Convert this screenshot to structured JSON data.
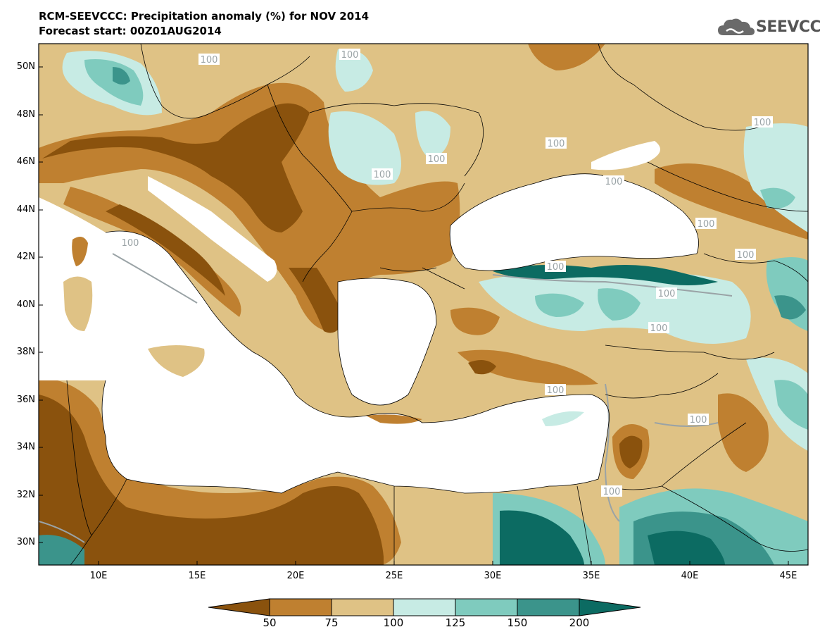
{
  "title_line1": "RCM-SEEVCCC: Precipitation anomaly (%) for NOV 2014",
  "title_line2": "Forecast start: 00Z01AUG2014",
  "logo_text": "SEEVCCC",
  "lat_labels": [
    "50N",
    "48N",
    "46N",
    "44N",
    "42N",
    "40N",
    "38N",
    "36N",
    "34N",
    "32N",
    "30N"
  ],
  "lon_labels": [
    "10E",
    "15E",
    "20E",
    "25E",
    "30E",
    "35E",
    "40E",
    "45E"
  ],
  "contour_label": "100",
  "colorbar": {
    "ticks": [
      "50",
      "75",
      "100",
      "125",
      "150",
      "200"
    ],
    "colors": [
      "#8a520d",
      "#bf8030",
      "#dfc285",
      "#c7ebe4",
      "#7fcbbe",
      "#3b948b",
      "#0c6b62"
    ]
  }
}
